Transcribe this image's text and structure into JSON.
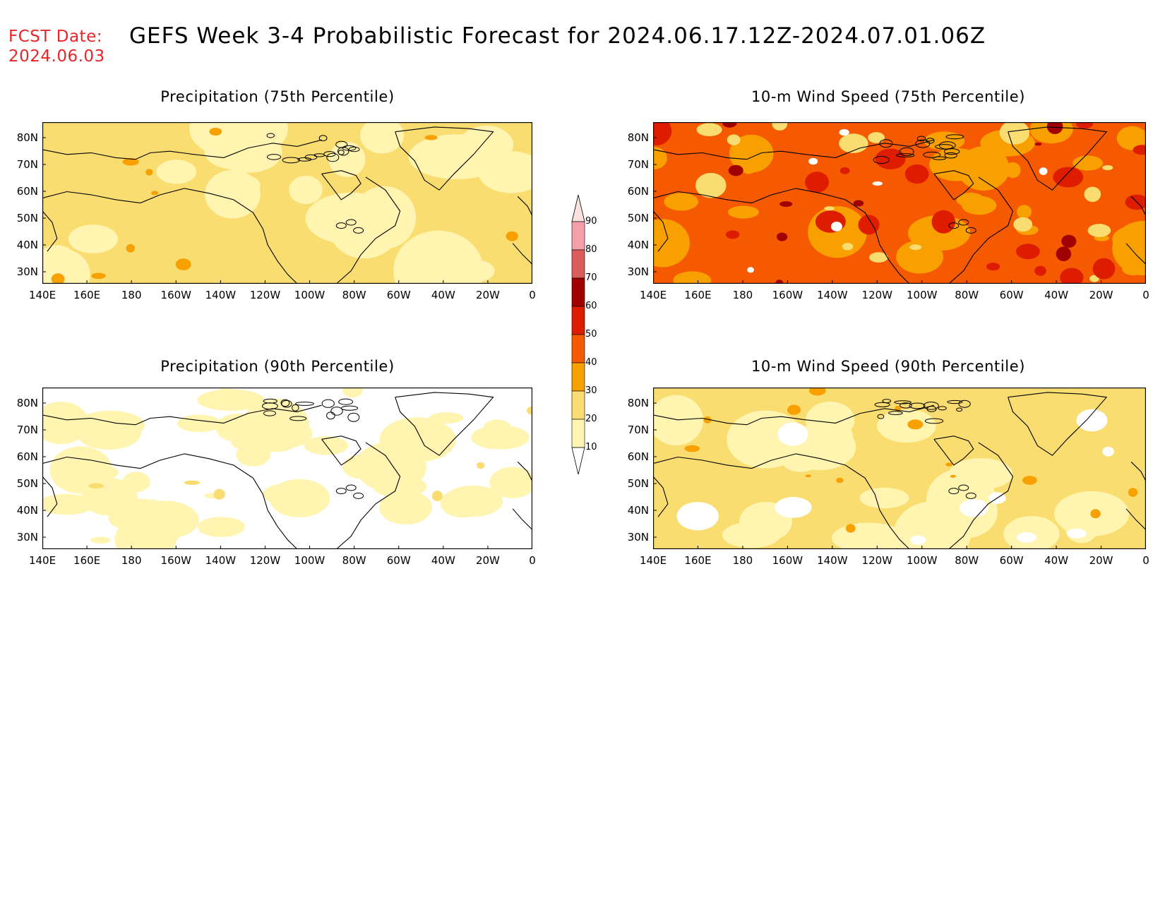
{
  "header": {
    "fcst_label": "FCST Date:",
    "fcst_date": "2024.06.03",
    "title": "GEFS Week 3-4 Probabilistic Forecast for 2024.06.17.12Z-2024.07.01.06Z"
  },
  "panels": [
    {
      "id": "precip75",
      "title": "Precipitation (75th Percentile)",
      "field": "precipitation",
      "percentile": 75,
      "dominant_level": 20
    },
    {
      "id": "wind75",
      "title": "10-m Wind Speed (75th Percentile)",
      "field": "10-m wind speed",
      "percentile": 75,
      "dominant_level": 40
    },
    {
      "id": "precip90",
      "title": "Precipitation (90th Percentile)",
      "field": "precipitation",
      "percentile": 90,
      "dominant_level": 10
    },
    {
      "id": "wind90",
      "title": "10-m Wind Speed (90th Percentile)",
      "field": "10-m wind speed",
      "percentile": 90,
      "dominant_level": 20
    }
  ],
  "axes": {
    "lat_ticks": [
      "80N",
      "70N",
      "60N",
      "50N",
      "40N",
      "30N"
    ],
    "lon_ticks": [
      "140E",
      "160E",
      "180",
      "160W",
      "140W",
      "120W",
      "100W",
      "80W",
      "60W",
      "40W",
      "20W",
      "0"
    ]
  },
  "colorbar": {
    "levels": [
      "90",
      "80",
      "70",
      "60",
      "50",
      "40",
      "30",
      "20",
      "10"
    ],
    "colors": [
      "#fbe0e0",
      "#f5a0a8",
      "#dc5c5c",
      "#a10000",
      "#dd1c00",
      "#f55a00",
      "#f7a000",
      "#fadd70",
      "#fff4b0",
      "#ffffff"
    ]
  }
}
